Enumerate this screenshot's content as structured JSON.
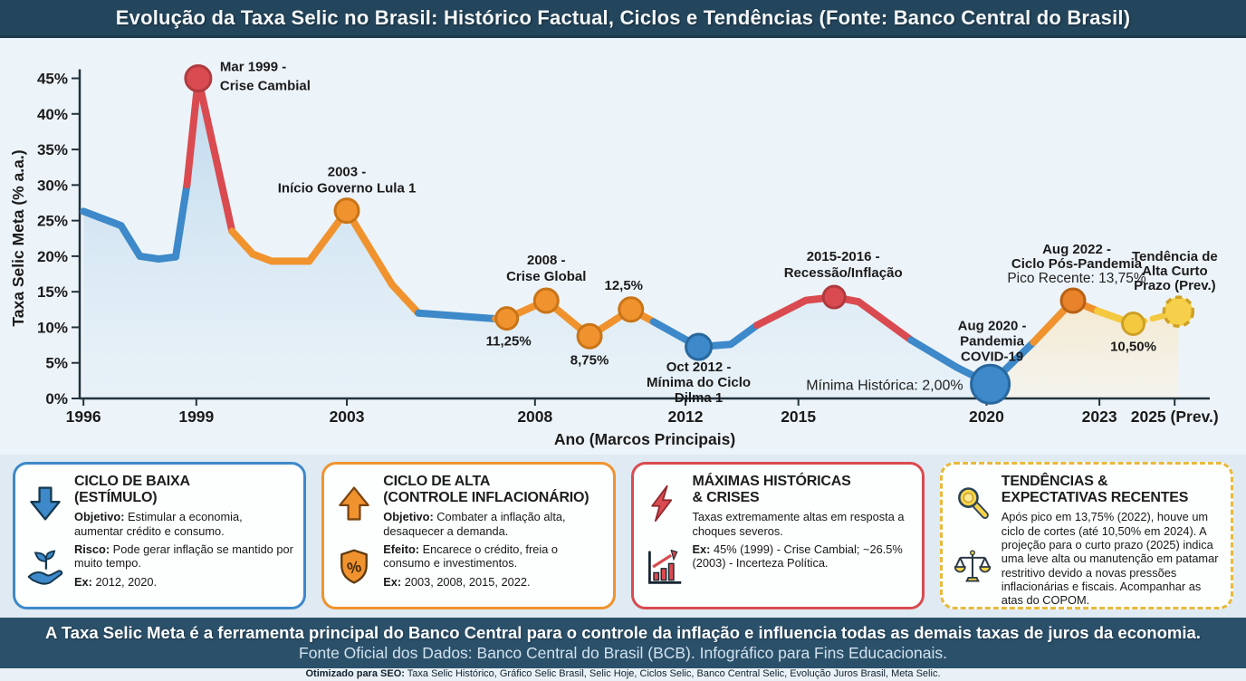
{
  "header": {
    "title": "Evolução da Taxa Selic no Brasil: Histórico Factual, Ciclos e Tendências (Fonte: Banco Central do Brasil)"
  },
  "chart_data": {
    "type": "line",
    "title": "Evolução da Taxa Selic no Brasil",
    "xlabel": "Ano (Marcos Principais)",
    "ylabel": "Taxa Selic Meta (% a.a.)",
    "ylim": [
      0,
      45
    ],
    "grid": false,
    "y_ticks": [
      "0%",
      "5%",
      "10%",
      "15%",
      "20%",
      "25%",
      "30%",
      "35%",
      "40%",
      "45%"
    ],
    "x_ticks": [
      {
        "year": 1996,
        "label": "1996"
      },
      {
        "year": 1999,
        "label": "1999"
      },
      {
        "year": 2003,
        "label": "2003"
      },
      {
        "year": 2008,
        "label": "2008"
      },
      {
        "year": 2012,
        "label": "2012"
      },
      {
        "year": 2015,
        "label": "2015"
      },
      {
        "year": 2020,
        "label": "2020"
      },
      {
        "year": 2023,
        "label": "2023"
      },
      {
        "year": 2025,
        "label": "2025 (Prev.)"
      }
    ],
    "series": [
      {
        "name": "Taxa Selic Meta (% a.a.)",
        "points": [
          [
            1996.0,
            26.3,
            "blue"
          ],
          [
            1997.0,
            24.3,
            "blue"
          ],
          [
            1997.5,
            20.0,
            "blue"
          ],
          [
            1998.0,
            19.6,
            "blue"
          ],
          [
            1998.45,
            19.9,
            "blue"
          ],
          [
            1998.75,
            30.0,
            "red"
          ],
          [
            1999.05,
            45.0,
            "red"
          ],
          [
            1999.95,
            23.5,
            "orange"
          ],
          [
            2000.5,
            20.3,
            "orange"
          ],
          [
            2001.0,
            19.3,
            "orange"
          ],
          [
            2002.0,
            19.3,
            "orange"
          ],
          [
            2003.0,
            26.4,
            "orange"
          ],
          [
            2004.2,
            16.0,
            "orange"
          ],
          [
            2004.9,
            12.0,
            "blue"
          ],
          [
            2006.95,
            11.2,
            "orange"
          ],
          [
            2007.25,
            11.25,
            "orange"
          ],
          [
            2008.3,
            13.75,
            "orange"
          ],
          [
            2009.45,
            8.75,
            "orange"
          ],
          [
            2010.55,
            12.5,
            "orange"
          ],
          [
            2011.15,
            10.8,
            "blue"
          ],
          [
            2012.35,
            7.25,
            "blue"
          ],
          [
            2013.2,
            7.6,
            "blue"
          ],
          [
            2013.9,
            10.3,
            "red"
          ],
          [
            2015.2,
            13.8,
            "red"
          ],
          [
            2015.95,
            14.25,
            "red"
          ],
          [
            2016.6,
            13.6,
            "red"
          ],
          [
            2018.0,
            8.2,
            "blue"
          ],
          [
            2019.2,
            4.4,
            "blue"
          ],
          [
            2020.1,
            2.0,
            "blue"
          ],
          [
            2021.25,
            7.9,
            "orange"
          ],
          [
            2022.3,
            13.75,
            "orange"
          ],
          [
            2022.95,
            12.3,
            "yellow"
          ],
          [
            2023.9,
            10.5,
            "yellow_dashed"
          ],
          [
            2025.1,
            12.2,
            "yellow"
          ]
        ]
      }
    ],
    "key_points": [
      {
        "id": "1999",
        "point_index": 6,
        "date": "Mar 1999",
        "value": 45,
        "color": "red",
        "radius": 14,
        "label_lines": [
          "Mar 1999 -",
          "Crise Cambial"
        ]
      },
      {
        "id": "2003",
        "point_index": 11,
        "date": "2003",
        "value": 26.4,
        "color": "orange",
        "radius": 13,
        "label_lines": [
          "2003 -",
          "Início Governo Lula 1"
        ]
      },
      {
        "id": "2007",
        "point_index": 15,
        "date": "2007",
        "value": 11.25,
        "color": "orange",
        "radius": 12,
        "value_label": "11,25%"
      },
      {
        "id": "2008",
        "point_index": 16,
        "date": "2008",
        "value": 13.75,
        "color": "orange",
        "radius": 13,
        "label_lines": [
          "2008 -",
          "Crise Global"
        ]
      },
      {
        "id": "2009",
        "point_index": 17,
        "date": "2009",
        "value": 8.75,
        "color": "orange",
        "radius": 13,
        "value_label": "8,75%"
      },
      {
        "id": "2011",
        "point_index": 18,
        "date": "2011",
        "value": 12.5,
        "color": "orange",
        "radius": 13,
        "value_label": "12,5%"
      },
      {
        "id": "2012",
        "point_index": 20,
        "date": "Oct 2012",
        "value": 7.25,
        "color": "blue",
        "radius": 14,
        "label_lines": [
          "Oct 2012 -",
          "Mínima do Ciclo",
          "Dilma 1"
        ]
      },
      {
        "id": "2015",
        "point_index": 24,
        "date": "2015-2016",
        "value": 14.25,
        "color": "red",
        "radius": 12,
        "label_lines": [
          "2015-2016 -",
          "Recessão/Inflação"
        ]
      },
      {
        "id": "2020",
        "point_index": 28,
        "date": "Aug 2020",
        "value": 2.0,
        "color": "blue",
        "radius": 21,
        "label_lines": [
          "Aug 2020 -",
          "Pandemia",
          "COVID-19"
        ],
        "note": "Mínima Histórica: 2,00%"
      },
      {
        "id": "2022",
        "point_index": 30,
        "date": "Aug 2022",
        "value": 13.75,
        "color": "orange_dark",
        "radius": 13,
        "label_lines": [
          "Aug 2022 -",
          "Ciclo Pós-Pandemia"
        ],
        "note": "Pico Recente: 13,75%"
      },
      {
        "id": "2024",
        "point_index": 32,
        "date": "2024",
        "value": 10.5,
        "color": "yellow",
        "radius": 12,
        "value_label": "10,50%"
      },
      {
        "id": "2025",
        "point_index": 33,
        "date": "2025",
        "value": 12.2,
        "color": "yellow",
        "radius": 16,
        "dashed": true,
        "label_lines": [
          "Tendência de",
          "Alta Curto",
          "Prazo (Prev.)"
        ]
      }
    ],
    "palette": {
      "blue": {
        "fill": "#3d89c9",
        "stroke": "#29689f"
      },
      "red": {
        "fill": "#d94b50",
        "stroke": "#b03a3f"
      },
      "orange": {
        "fill": "#f0932f",
        "stroke": "#c97417"
      },
      "orange_dark": {
        "fill": "#e8822b",
        "stroke": "#b86114"
      },
      "yellow": {
        "fill": "#f3c93f",
        "stroke": "#cda027"
      },
      "yellow_dashed": {
        "fill": "#f3c93f",
        "stroke": "#c8992b"
      },
      "area_blue_top": "#b9d6eb",
      "area_blue_bottom": "#dcebf5",
      "area_cream_top": "#f5e8cd",
      "area_cream_bottom": "#faf1df",
      "axis": "#23323c",
      "text": "#1b1b1b"
    }
  },
  "legend_boxes": [
    {
      "id": "ciclo-baixa",
      "accent": "#3d89c9",
      "border_style": "solid",
      "icons": [
        "down-arrow-icon",
        "sprout-hand-icon"
      ],
      "title": "CICLO DE BAIXA\n(ESTÍMULO)",
      "paragraphs": [
        {
          "lead": "Objetivo:",
          "text": "Estimular a economia, aumentar crédito e consumo."
        },
        {
          "lead": "Risco:",
          "text": "Pode gerar inflação se mantido por muito tempo."
        },
        {
          "lead": "Ex:",
          "text": "2012, 2020."
        }
      ]
    },
    {
      "id": "ciclo-alta",
      "accent": "#f0932f",
      "border_style": "solid",
      "icons": [
        "up-arrow-icon",
        "shield-percent-icon"
      ],
      "title": "CICLO DE ALTA\n(CONTROLE INFLACIONÁRIO)",
      "paragraphs": [
        {
          "lead": "Objetivo:",
          "text": "Combater a inflação alta, desaquecer a demanda."
        },
        {
          "lead": "Efeito:",
          "text": "Encarece o crédito, freia o consumo e investimentos."
        },
        {
          "lead": "Ex:",
          "text": "2003, 2008, 2015, 2022."
        }
      ]
    },
    {
      "id": "maximas-crises",
      "accent": "#d94b50",
      "border_style": "solid",
      "icons": [
        "lightning-icon",
        "chart-up-icon"
      ],
      "title": "MÁXIMAS HISTÓRICAS\n& CRISES",
      "paragraphs": [
        {
          "lead": "",
          "text": "Taxas extremamente altas em resposta a choques severos."
        },
        {
          "lead": "Ex:",
          "text": "45% (1999) - Crise Cambial; ~26.5% (2003) - Incerteza Política."
        }
      ]
    },
    {
      "id": "tendencias",
      "accent": "#e9b93b",
      "border_style": "dashed",
      "icons": [
        "magnifier-icon",
        "scale-icon"
      ],
      "title": "TENDÊNCIAS &\nEXPECTATIVAS RECENTES",
      "paragraphs": [
        {
          "lead": "",
          "text": "Após pico em 13,75% (2022), houve um ciclo de cortes (até 10,50% em 2024). A projeção para o curto prazo (2025) indica uma leve alta ou manutenção em patamar restritivo devido a novas pressões inflacionárias e fiscais. Acompanhar as atas do COPOM."
        }
      ]
    }
  ],
  "footer": {
    "line1": "A Taxa Selic Meta é a ferramenta principal do Banco Central para o controle da inflação e influencia todas as demais taxas de juros da economia.",
    "line2": "Fonte Oficial dos Dados: Banco Central do Brasil (BCB). Infográfico para Fins Educacionais.",
    "seo_lead": "Otimizado para SEO:",
    "seo_text": "Taxa Selic Histórico, Gráfico Selic Brasil, Selic Hoje, Ciclos Selic, Banco Central Selic, Evolução Juros Brasil, Meta Selic."
  }
}
